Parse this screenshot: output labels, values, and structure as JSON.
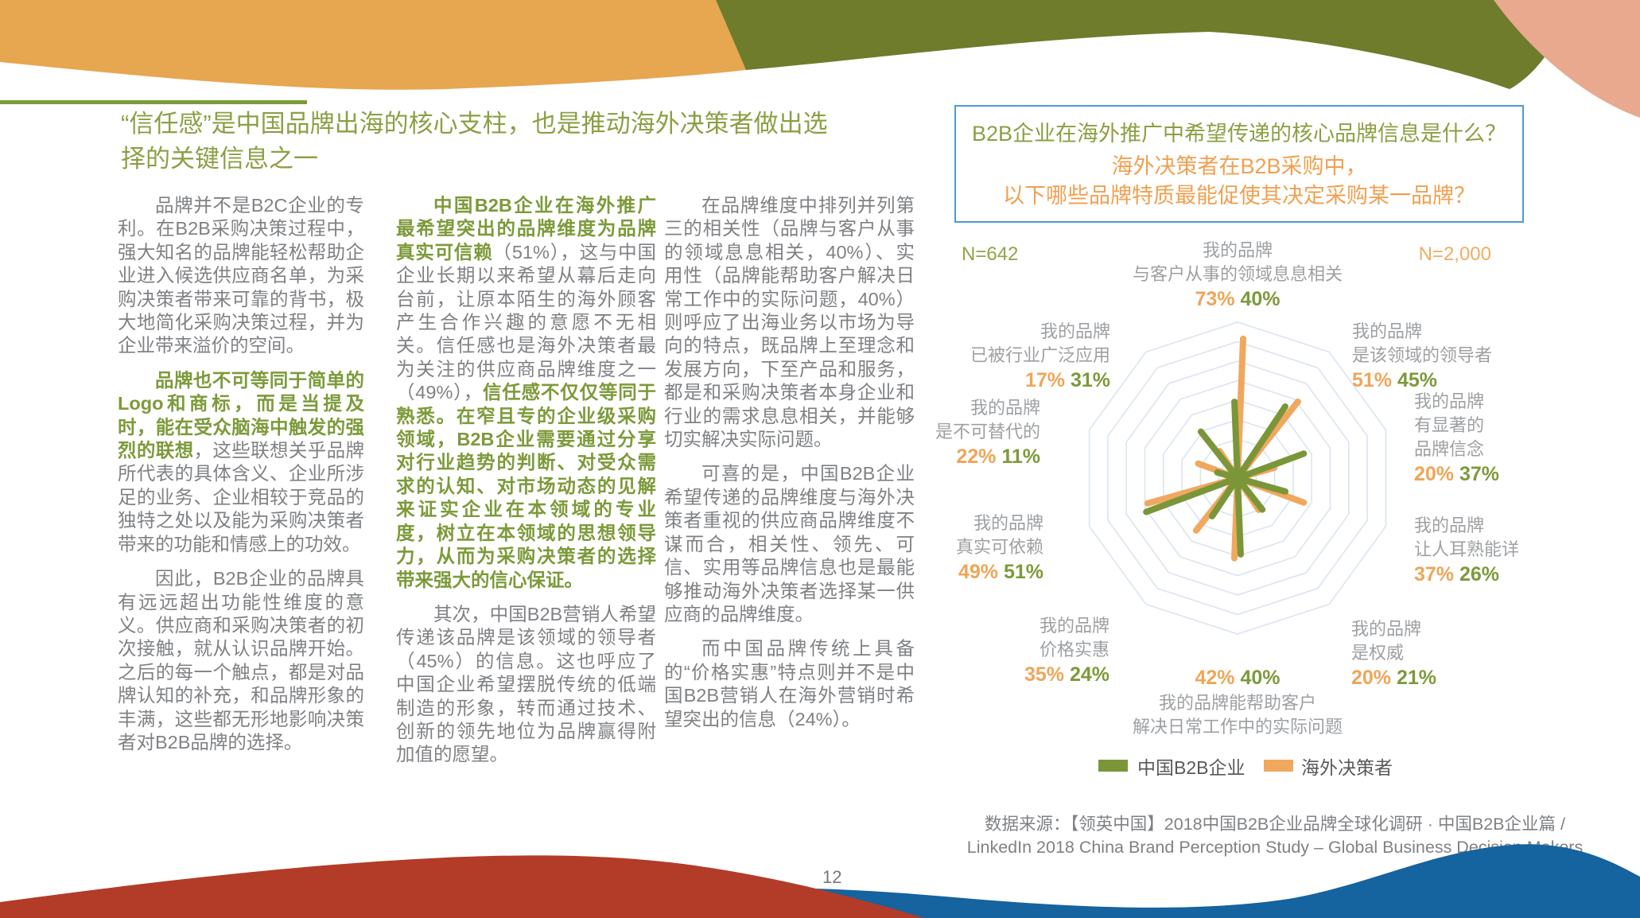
{
  "page": {
    "page_number": "12"
  },
  "title": {
    "line1": "“信任感”是中国品牌出海的核心支柱，也是推动海外决策者做出选",
    "line2": "择的关键信息之一",
    "color": "#8C9F44"
  },
  "decor": {
    "top_orange": "#E6A750",
    "top_green": "#6E7C2B",
    "top_salmon": "#E9A98E",
    "bottom_red": "#B23C28",
    "bottom_blue": "#15639F",
    "rule_green": "#7C9A3C"
  },
  "columns": [
    {
      "paragraphs": [
        {
          "runs": [
            {
              "style": "normal",
              "text": "品牌并不是B2C企业的专利。在B2B采购决策过程中，强大知名的品牌能轻松帮助企业进入候选供应商名单，为采购决策者带来可靠的背书，极大地简化采购决策过程，并为企业带来溢价的空间。"
            }
          ]
        },
        {
          "runs": [
            {
              "style": "emphasis",
              "text": "品牌也不可等同于简单的Logo和商标，而是当提及时，能在受众脑海中触发的强烈的联想"
            },
            {
              "style": "normal",
              "text": "，这些联想关乎品牌所代表的具体含义、企业所涉足的业务、企业相较于竞品的独特之处以及能为采购决策者带来的功能和情感上的功效。"
            }
          ]
        },
        {
          "runs": [
            {
              "style": "normal",
              "text": "因此，B2B企业的品牌具有远远超出功能性维度的意义。供应商和采购决策者的初次接触，就从认识品牌开始。之后的每一个触点，都是对品牌认知的补充，和品牌形象的丰满，这些都无形地影响决策者对B2B品牌的选择。"
            }
          ]
        }
      ]
    },
    {
      "paragraphs": [
        {
          "runs": [
            {
              "style": "emphasis",
              "text": "中国B2B企业在海外推广最希望突出的品牌维度为品牌真实可信赖"
            },
            {
              "style": "normal",
              "text": "（51%），这与中国企业长期以来希望从幕后走向台前，让原本陌生的海外顾客产生合作兴趣的意愿不无相关。信任感也是海外决策者最为关注的供应商品牌维度之一（49%），"
            },
            {
              "style": "emphasis",
              "text": "信任感不仅仅等同于熟悉。在窄且专的企业级采购领域，B2B企业需要通过分享对行业趋势的判断、对受众需求的认知、对市场动态的见解来证实企业在本领域的专业度，树立在本领域的思想领导力，从而为采购决策者的选择带来强大的信心保证。"
            }
          ]
        },
        {
          "runs": [
            {
              "style": "normal",
              "text": "其次，中国B2B营销人希望传递该品牌是该领域的领导者（45%）的信息。这也呼应了中国企业希望摆脱传统的低端制造的形象，转而通过技术、创新的领先地位为品牌赢得附加值的愿望。"
            }
          ]
        }
      ]
    },
    {
      "paragraphs": [
        {
          "runs": [
            {
              "style": "normal",
              "text": "在品牌维度中排列并列第三的相关性（品牌与客户从事的领域息息相关，40%）、实用性（品牌能帮助客户解决日常工作中的实际问题，40%）则呼应了出海业务以市场为导向的特点，既品牌上至理念和发展方向，下至产品和服务，都是和采购决策者本身企业和行业的需求息息相关，并能够切实解决实际问题。"
            }
          ]
        },
        {
          "runs": [
            {
              "style": "normal",
              "text": "可喜的是，中国B2B企业希望传递的品牌维度与海外决策者重视的供应商品牌维度不谋而合，相关性、领先、可信、实用等品牌信息也是最能够推动海外决策者选择某一供应商的品牌维度。"
            }
          ]
        },
        {
          "runs": [
            {
              "style": "normal",
              "text": "而中国品牌传统上具备的“价格实惠”特点则并不是中国B2B营销人在海外营销时希望突出的信息（24%）。"
            }
          ]
        }
      ]
    }
  ],
  "panel": {
    "box": {
      "question_line1": "B2B企业在海外推广中希望传递的核心品牌信息是什么？",
      "question_line2": "海外决策者在B2B采购中，",
      "question_line3": "以下哪些品牌特质最能促使其决定采购某一品牌？",
      "border_color": "#4D9AD5",
      "line1_color": "#8C9F44",
      "line23_color": "#F0A050"
    },
    "source_line1": "数据来源：【领英中国】2018中国B2B企业品牌全球化调研 · 中国B2B企业篇 /",
    "source_line2": "LinkedIn 2018 China Brand Perception Study – Global Business Decision Makers"
  },
  "chart_data": {
    "type": "radar",
    "subtype": "spoke-star",
    "rings": 8,
    "ring_value_step_pct": 10,
    "max_value_pct": 80,
    "grid_color": "#DBE4F0",
    "legend_position": "bottom",
    "series": [
      {
        "name": "中国B2B企业",
        "key": "china",
        "color": "#7A9638",
        "n_label": "N=642"
      },
      {
        "name": "海外决策者",
        "key": "overseas",
        "color": "#F0A85F",
        "n_label": "N=2,000"
      }
    ],
    "axes": [
      {
        "label_lines": [
          "我的品牌",
          "与客户从事的领域息息相关"
        ],
        "overseas": 73,
        "china": 40
      },
      {
        "label_lines": [
          "我的品牌",
          "是该领域的领导者"
        ],
        "overseas": 51,
        "china": 45
      },
      {
        "label_lines": [
          "我的品牌",
          "有显著的",
          "品牌信念"
        ],
        "overseas": 20,
        "china": 37
      },
      {
        "label_lines": [
          "我的品牌",
          "让人耳熟能详"
        ],
        "overseas": 37,
        "china": 26
      },
      {
        "label_lines": [
          "我的品牌",
          "是权威"
        ],
        "overseas": 20,
        "china": 21
      },
      {
        "label_lines": [
          "我的品牌能帮助客户",
          "解决日常工作中的实际问题"
        ],
        "overseas": 42,
        "china": 40
      },
      {
        "label_lines": [
          "我的品牌",
          "价格实惠"
        ],
        "overseas": 35,
        "china": 24
      },
      {
        "label_lines": [
          "我的品牌",
          "真实可依赖"
        ],
        "overseas": 49,
        "china": 51
      },
      {
        "label_lines": [
          "我的品牌",
          "是不可替代的"
        ],
        "overseas": 22,
        "china": 11
      },
      {
        "label_lines": [
          "我的品牌",
          "已被行业广泛应用"
        ],
        "overseas": 17,
        "china": 31
      }
    ]
  }
}
